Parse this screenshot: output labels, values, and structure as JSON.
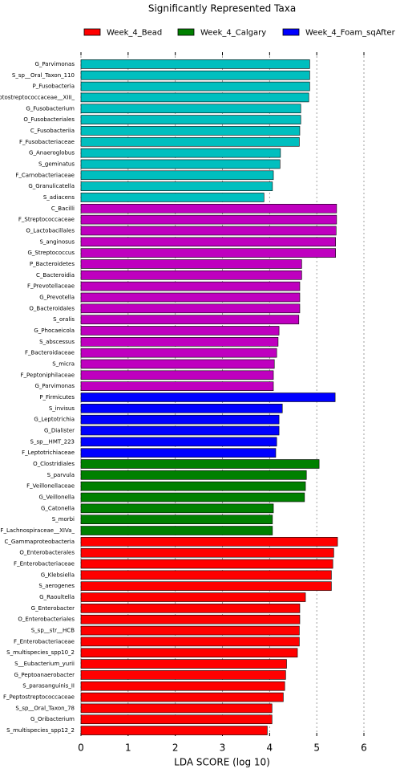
{
  "chart_data": {
    "type": "barh",
    "title": "Significantly Represented Taxa",
    "xlabel": "LDA SCORE (log 10)",
    "legend": [
      {
        "name": "Week_4_Bead",
        "color": "#ff0000"
      },
      {
        "name": "Week_4_Calgary",
        "color": "#008000"
      },
      {
        "name": "Week_4_Foam_sqAfter",
        "color": "#0000ff"
      }
    ],
    "categories": [
      "G_Parvimonas",
      "S_sp__Oral_Taxon_110",
      "P_Fusobacteria",
      "eptostreptococcaceae__XIII_",
      "G_Fusobacterium",
      "O_Fusobacteriales",
      "C_Fusobacteriia",
      "F_Fusobacteriaceae",
      "G_Anaeroglobus",
      "S_geminatus",
      "F_Carnobacteriaceae",
      "G_Granulicatella",
      "S_adiacens",
      "C_Bacilli",
      "F_Streptococcaceae",
      "O_Lactobacillales",
      "S_anginosus",
      "G_Streptococcus",
      "P_Bacteroidetes",
      "C_Bacteroidia",
      "F_Prevotellaceae",
      "G_Prevotella",
      "O_Bacteroidales",
      "S_oralis",
      "G_Phocaeicola",
      "S_abscessus",
      "F_Bacteroidaceae",
      "S_micra",
      "F_Peptoniphilaceae",
      "G_Parvimonas",
      "P_Firmicutes",
      "S_invisus",
      "G_Leptotrichia",
      "G_Dialister",
      "S_sp__HMT_223",
      "F_Leptotrichiaceae",
      "O_Clostridiales",
      "S_parvula",
      "F_Veillonellaceae",
      "G_Veillonella",
      "G_Catonella",
      "S_morbi",
      "F_Lachnospiraceae__XIVa_",
      "C_Gammaproteobacteria",
      "O_Enterobacterales",
      "F_Enterobacteriaceae",
      "G_Klebsiella",
      "S_aerogenes",
      "G_Raoultella",
      "G_Enterobacter",
      "O_Enterobacteriales",
      "S_sp__str__HCB",
      "F_Enterobacteriaceae",
      "S_multispecies_spp10_2",
      "S__Eubacterium_yurii",
      "G_Peptoanaerobacter",
      "S_parasanguinis_II",
      "F_Peptostreptococcaceae",
      "S_sp__Oral_Taxon_78",
      "G_Oribacterium",
      "S_multispecies_spp12_2"
    ],
    "values": [
      4.85,
      4.85,
      4.85,
      4.83,
      4.66,
      4.66,
      4.64,
      4.63,
      4.23,
      4.22,
      4.08,
      4.06,
      3.88,
      5.42,
      5.42,
      5.41,
      5.4,
      5.4,
      4.68,
      4.68,
      4.64,
      4.64,
      4.64,
      4.62,
      4.2,
      4.18,
      4.15,
      4.1,
      4.08,
      4.08,
      5.39,
      4.27,
      4.2,
      4.2,
      4.15,
      4.13,
      5.05,
      4.78,
      4.76,
      4.74,
      4.08,
      4.06,
      4.06,
      5.44,
      5.36,
      5.34,
      5.31,
      5.31,
      4.76,
      4.64,
      4.64,
      4.63,
      4.63,
      4.59,
      4.36,
      4.34,
      4.32,
      4.29,
      4.05,
      4.05,
      3.95
    ],
    "colors": [
      "#00bfbf",
      "#00bfbf",
      "#00bfbf",
      "#00bfbf",
      "#00bfbf",
      "#00bfbf",
      "#00bfbf",
      "#00bfbf",
      "#00bfbf",
      "#00bfbf",
      "#00bfbf",
      "#00bfbf",
      "#00bfbf",
      "#bf00bf",
      "#bf00bf",
      "#bf00bf",
      "#bf00bf",
      "#bf00bf",
      "#bf00bf",
      "#bf00bf",
      "#bf00bf",
      "#bf00bf",
      "#bf00bf",
      "#bf00bf",
      "#bf00bf",
      "#bf00bf",
      "#bf00bf",
      "#bf00bf",
      "#bf00bf",
      "#bf00bf",
      "#0000ff",
      "#0000ff",
      "#0000ff",
      "#0000ff",
      "#0000ff",
      "#0000ff",
      "#008000",
      "#008000",
      "#008000",
      "#008000",
      "#008000",
      "#008000",
      "#008000",
      "#ff0000",
      "#ff0000",
      "#ff0000",
      "#ff0000",
      "#ff0000",
      "#ff0000",
      "#ff0000",
      "#ff0000",
      "#ff0000",
      "#ff0000",
      "#ff0000",
      "#ff0000",
      "#ff0000",
      "#ff0000",
      "#ff0000",
      "#ff0000",
      "#ff0000",
      "#ff0000"
    ],
    "xlim": [
      0,
      6
    ],
    "xticks": [
      0,
      1,
      2,
      3,
      4,
      5,
      6
    ],
    "grid": true
  }
}
